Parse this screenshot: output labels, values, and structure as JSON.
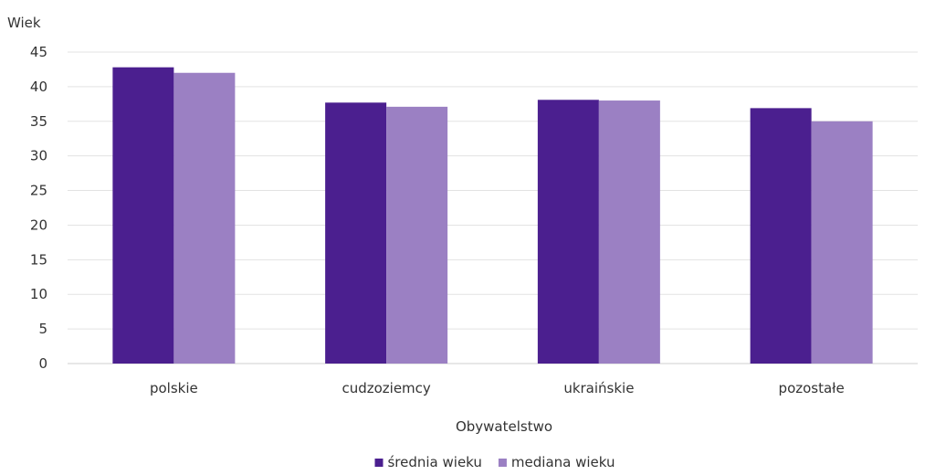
{
  "chart_data": {
    "type": "bar",
    "title": "",
    "ylabel": "Wiek",
    "xlabel": "Obywatelstwo",
    "categories": [
      "polskie",
      "cudzoziemcy",
      "ukraińskie",
      "pozostałe"
    ],
    "series": [
      {
        "name": "średnia wieku",
        "color": "#4b1f8f",
        "values": [
          42.8,
          37.7,
          38.1,
          36.9
        ]
      },
      {
        "name": "mediana wieku",
        "color": "#9b80c3",
        "values": [
          42.0,
          37.1,
          38.0,
          35.0
        ]
      }
    ],
    "ylim": [
      0,
      45
    ],
    "yticks": [
      "0",
      "5",
      "10",
      "15",
      "20",
      "25",
      "30",
      "35",
      "40",
      "45"
    ],
    "grid": true,
    "legend_position": "bottom"
  }
}
